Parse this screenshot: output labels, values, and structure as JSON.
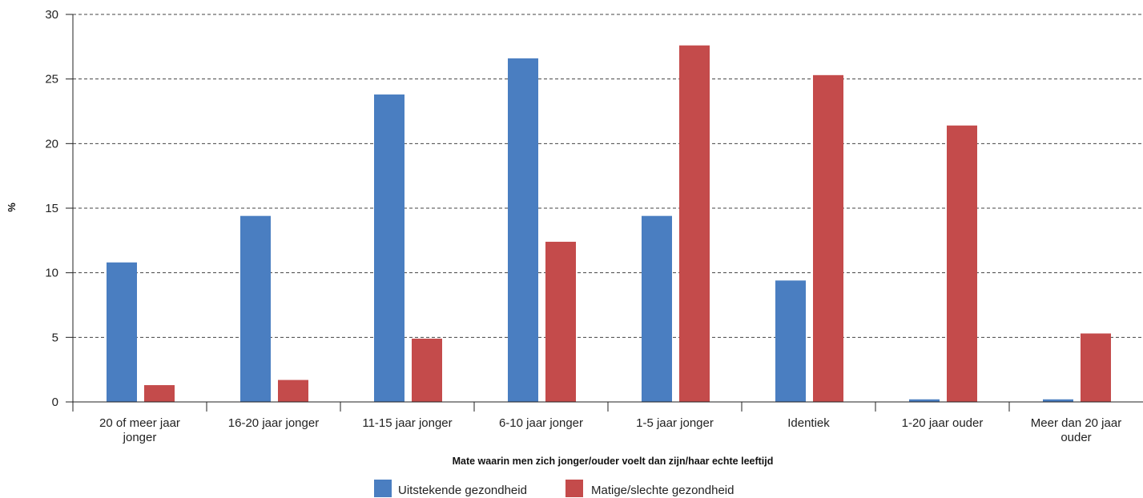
{
  "chart_data": {
    "type": "bar",
    "ylabel": "%",
    "xlabel": "Mate waarin men zich jonger/ouder voelt dan zijn/haar echte leeftijd",
    "ylim": [
      0,
      30
    ],
    "yticks": [
      0,
      5,
      10,
      15,
      20,
      25,
      30
    ],
    "grid": "horizontal dashed",
    "legend_position": "bottom",
    "categories": [
      [
        "20 of meer jaar",
        "jonger"
      ],
      [
        "16-20 jaar jonger"
      ],
      [
        "11-15 jaar jonger"
      ],
      [
        "6-10 jaar jonger"
      ],
      [
        "1-5 jaar jonger"
      ],
      [
        "Identiek"
      ],
      [
        "1-20 jaar ouder"
      ],
      [
        "Meer dan 20 jaar",
        "ouder"
      ]
    ],
    "series": [
      {
        "name": "Uitstekende gezondheid",
        "color": "#4a7ec1",
        "values": [
          10.8,
          14.4,
          23.8,
          26.6,
          14.4,
          9.4,
          0.2,
          0.2
        ]
      },
      {
        "name": "Matige/slechte gezondheid",
        "color": "#c44b4b",
        "values": [
          1.3,
          1.7,
          4.9,
          12.4,
          27.6,
          25.3,
          21.4,
          5.3
        ]
      }
    ]
  }
}
